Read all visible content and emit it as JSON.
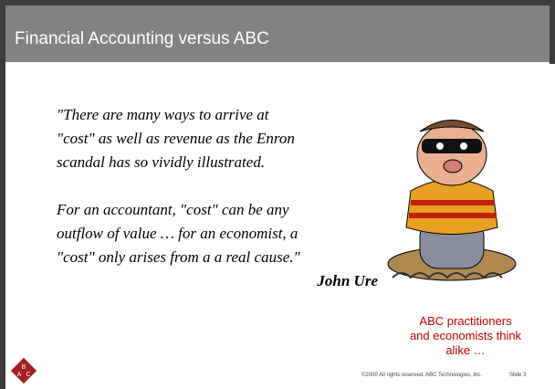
{
  "header": {
    "title": "Financial Accounting versus ABC"
  },
  "quote": {
    "paragraphs": [
      [
        "\"There are many ways to arrive at",
        "\"cost\" as well as revenue as the Enron",
        "scandal has so vividly illustrated."
      ],
      [
        "For an accountant, \"cost\" can be any",
        "outflow of value … for an economist, a",
        "\"cost\" only arises from a a real cause.\""
      ]
    ],
    "author": "John Ure"
  },
  "caption": {
    "lines": [
      "ABC practitioners",
      "and economists think",
      "alike …"
    ]
  },
  "footer": {
    "copyright": "©2000 All rights reserved. ABC Technologies, Inc.",
    "slide": "Slide 3"
  }
}
